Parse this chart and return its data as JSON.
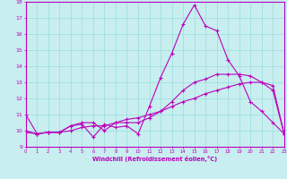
{
  "xlabel": "Windchill (Refroidissement éolien,°C)",
  "xlim": [
    0,
    23
  ],
  "ylim": [
    9,
    18
  ],
  "xticks": [
    0,
    1,
    2,
    3,
    4,
    5,
    6,
    7,
    8,
    9,
    10,
    11,
    12,
    13,
    14,
    15,
    16,
    17,
    18,
    19,
    20,
    21,
    22,
    23
  ],
  "yticks": [
    9,
    10,
    11,
    12,
    13,
    14,
    15,
    16,
    17,
    18
  ],
  "background_color": "#c8eef0",
  "grid_color": "#99dddd",
  "line_color": "#bb00bb",
  "line1_x": [
    0,
    1,
    2,
    3,
    4,
    5,
    6,
    7,
    8,
    9,
    10,
    11,
    12,
    13,
    14,
    15,
    16,
    17,
    18,
    19,
    20,
    21,
    22,
    23
  ],
  "line1_y": [
    11.0,
    9.8,
    9.9,
    9.9,
    10.3,
    10.4,
    9.6,
    10.4,
    10.2,
    10.3,
    9.8,
    11.5,
    13.3,
    14.8,
    16.6,
    17.8,
    16.5,
    16.2,
    14.4,
    13.4,
    11.8,
    11.2,
    10.5,
    9.8
  ],
  "line2_x": [
    0,
    1,
    2,
    3,
    4,
    5,
    6,
    7,
    8,
    9,
    10,
    11,
    12,
    13,
    14,
    15,
    16,
    17,
    18,
    19,
    20,
    21,
    22,
    23
  ],
  "line2_y": [
    9.9,
    9.8,
    9.9,
    9.9,
    10.3,
    10.5,
    10.5,
    10.0,
    10.5,
    10.5,
    10.5,
    10.8,
    11.2,
    11.8,
    12.5,
    13.0,
    13.2,
    13.5,
    13.5,
    13.5,
    13.4,
    13.0,
    12.5,
    9.8
  ],
  "line3_x": [
    0,
    1,
    2,
    3,
    4,
    5,
    6,
    7,
    8,
    9,
    10,
    11,
    12,
    13,
    14,
    15,
    16,
    17,
    18,
    19,
    20,
    21,
    22,
    23
  ],
  "line3_y": [
    10.0,
    9.8,
    9.9,
    9.9,
    10.0,
    10.2,
    10.3,
    10.3,
    10.5,
    10.7,
    10.8,
    11.0,
    11.2,
    11.5,
    11.8,
    12.0,
    12.3,
    12.5,
    12.7,
    12.9,
    13.0,
    13.0,
    12.8,
    9.8
  ]
}
